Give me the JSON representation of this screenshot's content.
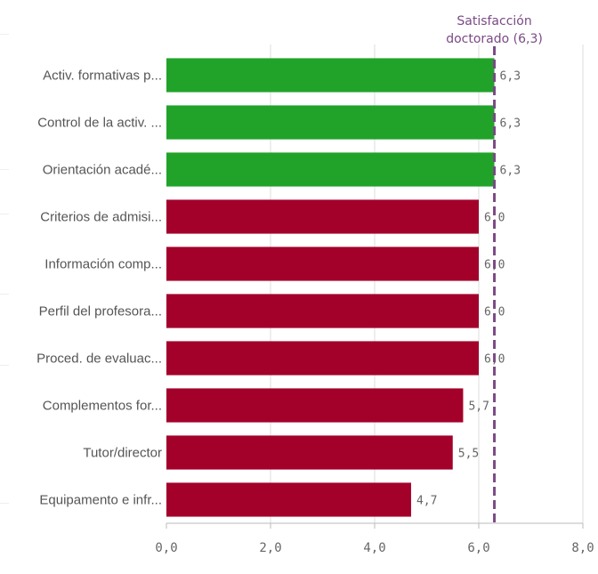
{
  "chart_data": {
    "type": "bar",
    "orientation": "horizontal",
    "categories": [
      "Activ. formativas p...",
      "Control de la activ. ...",
      "Orientación acadé...",
      "Criterios de admisi...",
      "Información comp...",
      "Perfil del profesora...",
      "Proced. de evaluac...",
      "Complementos for...",
      "Tutor/director",
      "Equipamento e infr..."
    ],
    "values": [
      6.3,
      6.3,
      6.3,
      6.0,
      6.0,
      6.0,
      6.0,
      5.7,
      5.5,
      4.7
    ],
    "value_labels": [
      "6,3",
      "6,3",
      "6,3",
      "6,0",
      "6,0",
      "6,0",
      "6,0",
      "5,7",
      "5,5",
      "4,7"
    ],
    "bar_colors": [
      "#21a32a",
      "#21a32a",
      "#21a32a",
      "#a3002a",
      "#a3002a",
      "#a3002a",
      "#a3002a",
      "#a3002a",
      "#a3002a",
      "#a3002a"
    ],
    "xlim": [
      0,
      8
    ],
    "x_ticks": [
      0,
      2,
      4,
      6,
      8
    ],
    "x_tick_labels": [
      "0,0",
      "2,0",
      "4,0",
      "6,0",
      "8,0"
    ],
    "grid": true,
    "reference_line": {
      "value": 6.3,
      "label_lines": [
        "Satisfacción",
        "doctorado (6,3)"
      ],
      "color": "#7b4a86"
    },
    "title": "",
    "xlabel": "",
    "ylabel": ""
  }
}
